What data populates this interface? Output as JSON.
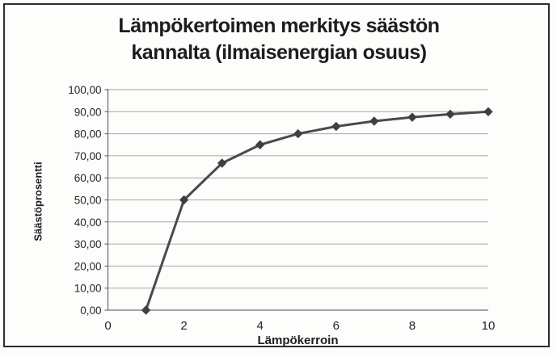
{
  "header": {
    "title_lines": [
      "Lämpökertoimen merkitys säästön",
      "kannalta (ilmaisenergian osuus)"
    ]
  },
  "chart_data": {
    "type": "line",
    "title": "Lämpökertoimen merkitys säästön kannalta (ilmaisenergian osuus)",
    "xlabel": "Lämpökerroin",
    "ylabel": "Säästöprosentti",
    "x": [
      1,
      2,
      3,
      4,
      5,
      6,
      7,
      8,
      9,
      10
    ],
    "y": [
      0,
      50,
      66.67,
      75,
      80,
      83.33,
      85.71,
      87.5,
      88.89,
      90
    ],
    "xlim": [
      0,
      10
    ],
    "ylim": [
      0,
      100
    ],
    "x_ticks": [
      0,
      2,
      4,
      6,
      8,
      10
    ],
    "x_tick_labels": [
      "0",
      "2",
      "4",
      "6",
      "8",
      "10"
    ],
    "y_ticks": [
      0,
      10,
      20,
      30,
      40,
      50,
      60,
      70,
      80,
      90,
      100
    ],
    "y_tick_labels": [
      "0,00",
      "10,00",
      "20,00",
      "30,00",
      "40,00",
      "50,00",
      "60,00",
      "70,00",
      "80,00",
      "90,00",
      "100,00"
    ],
    "grid": "horizontal",
    "legend": "none",
    "marker": "diamond",
    "colors": {
      "series_line": "#4a4a4a",
      "series_marker": "#3f3f3f",
      "gridline": "#a8a8a8",
      "axis_line": "#707070",
      "tick_text": "#262626",
      "frame_border": "#2e2e2e",
      "background": "#fdfdfb"
    }
  }
}
